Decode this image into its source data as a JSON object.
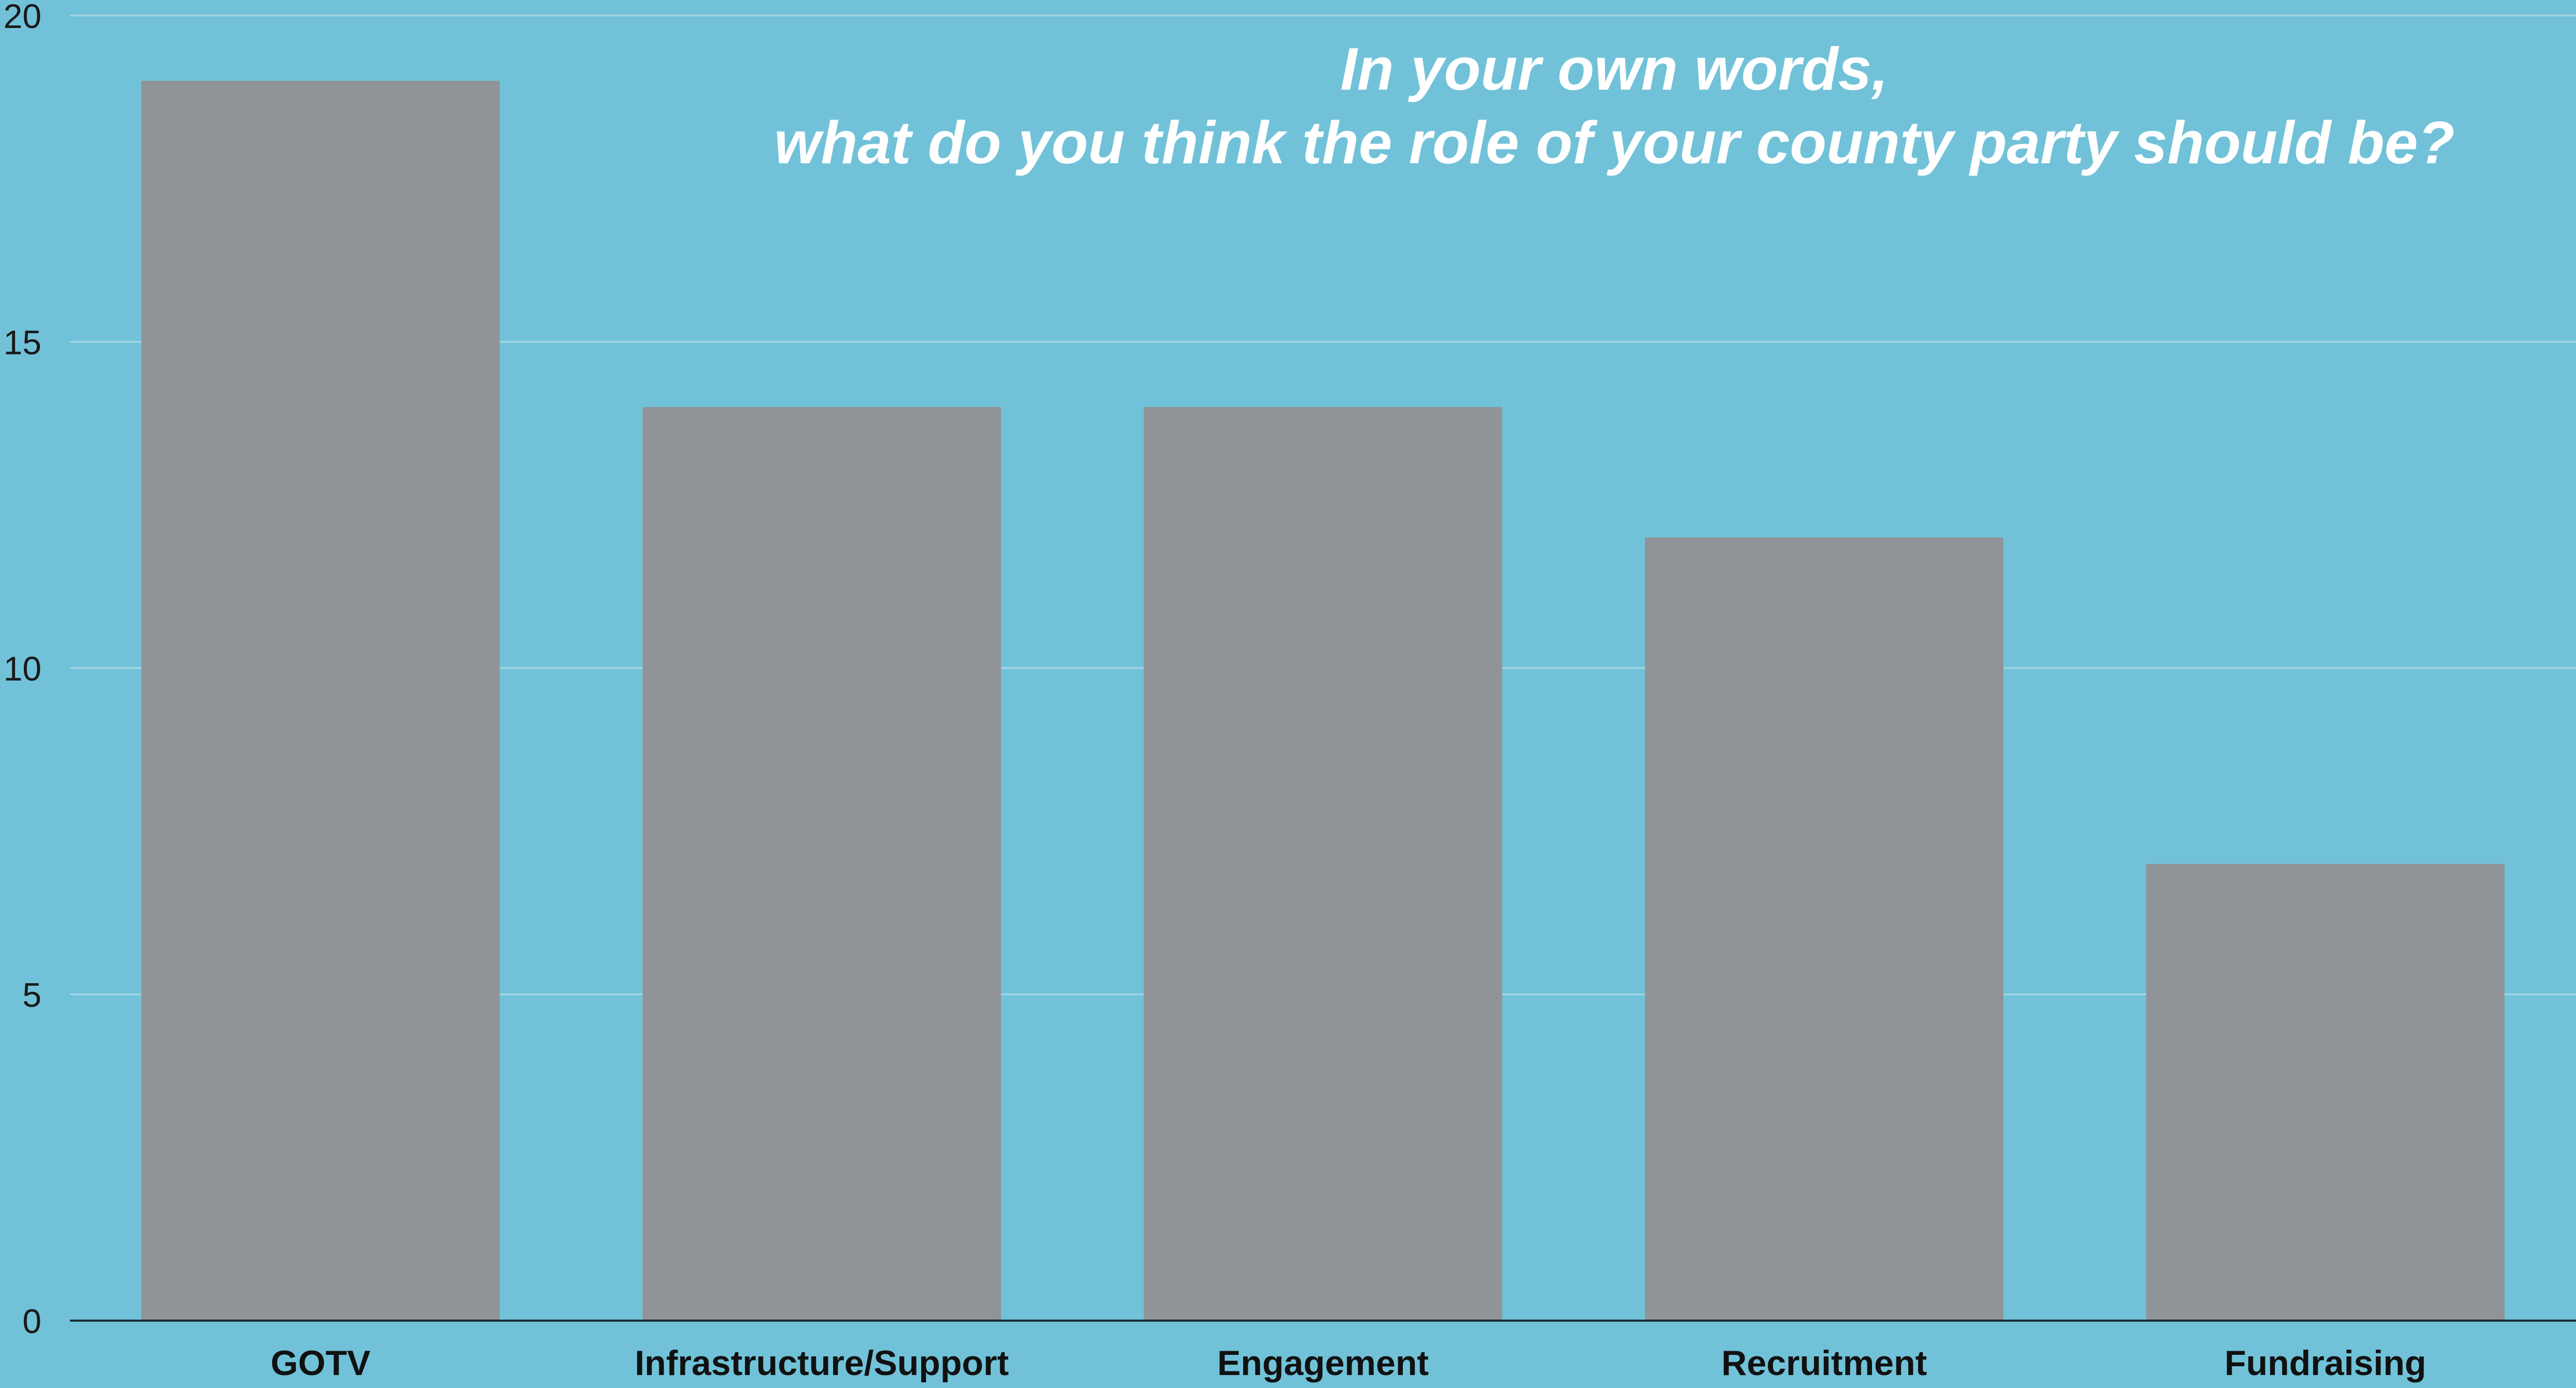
{
  "colors": {
    "background": "#71c2d8",
    "bar": "#909398",
    "grid": "#a9d6e4",
    "axis": "#1a2a30",
    "title": "#ffffff"
  },
  "chart_data": {
    "type": "bar",
    "title_lines": [
      "In your own words,",
      "what do you think the role of your county party should be?"
    ],
    "xlabel": "",
    "ylabel": "",
    "categories": [
      "GOTV",
      "Infrastructure/Support",
      "Engagement",
      "Recruitment",
      "Fundraising"
    ],
    "values": [
      19,
      14,
      14,
      12,
      7
    ],
    "ylim": [
      0,
      20
    ],
    "yticks": [
      0,
      5,
      10,
      15,
      20
    ],
    "grid": true,
    "legend": "none"
  }
}
